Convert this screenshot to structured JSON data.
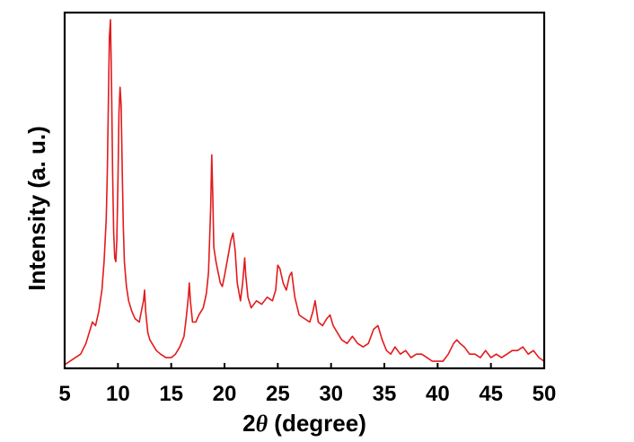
{
  "chart_data": {
    "type": "line",
    "title": "",
    "xlabel_prefix": "2",
    "xlabel_symbol": "θ",
    "xlabel_suffix": " (degree)",
    "ylabel": "Intensity (a. u.)",
    "xlim": [
      5,
      50
    ],
    "ylim": [
      0,
      1.0
    ],
    "x_ticks": [
      5,
      10,
      15,
      20,
      25,
      30,
      35,
      40,
      45,
      50
    ],
    "y_ticks_labeled": false,
    "grid": false,
    "line_color": "#e31a1c",
    "series": [
      {
        "x": [
          5.0,
          5.5,
          6.0,
          6.5,
          7.0,
          7.3,
          7.6,
          7.9,
          8.2,
          8.5,
          8.7,
          8.9,
          9.0,
          9.1,
          9.2,
          9.3,
          9.4,
          9.5,
          9.6,
          9.7,
          9.8,
          9.9,
          10.0,
          10.1,
          10.2,
          10.3,
          10.4,
          10.5,
          10.6,
          10.8,
          11.0,
          11.3,
          11.6,
          12.0,
          12.2,
          12.4,
          12.5,
          12.6,
          12.8,
          13.0,
          13.2,
          13.6,
          14.0,
          14.5,
          15.0,
          15.4,
          15.8,
          16.2,
          16.4,
          16.6,
          16.7,
          16.8,
          17.0,
          17.3,
          17.6,
          18.0,
          18.3,
          18.5,
          18.6,
          18.7,
          18.8,
          18.9,
          19.0,
          19.2,
          19.4,
          19.6,
          19.8,
          20.0,
          20.3,
          20.6,
          20.8,
          21.0,
          21.2,
          21.5,
          21.7,
          21.9,
          22.0,
          22.2,
          22.5,
          23.0,
          23.5,
          24.0,
          24.5,
          24.8,
          25.0,
          25.2,
          25.5,
          25.8,
          26.1,
          26.3,
          26.6,
          27.0,
          27.5,
          28.0,
          28.3,
          28.5,
          28.8,
          29.2,
          29.6,
          29.9,
          30.2,
          30.6,
          31.0,
          31.5,
          32.0,
          32.5,
          33.0,
          33.5,
          34.0,
          34.4,
          34.8,
          35.2,
          35.6,
          36.0,
          36.5,
          37.0,
          37.5,
          38.0,
          38.5,
          39.0,
          39.5,
          40.0,
          40.5,
          41.0,
          41.5,
          41.8,
          42.1,
          42.5,
          43.0,
          43.5,
          44.0,
          44.5,
          45.0,
          45.5,
          46.0,
          46.5,
          47.0,
          47.5,
          48.0,
          48.5,
          49.0,
          49.5,
          50.0
        ],
        "y": [
          0.01,
          0.02,
          0.03,
          0.04,
          0.07,
          0.1,
          0.13,
          0.12,
          0.16,
          0.22,
          0.3,
          0.42,
          0.55,
          0.75,
          0.93,
          0.98,
          0.8,
          0.55,
          0.38,
          0.31,
          0.3,
          0.36,
          0.52,
          0.72,
          0.79,
          0.74,
          0.56,
          0.4,
          0.3,
          0.23,
          0.19,
          0.16,
          0.14,
          0.13,
          0.16,
          0.19,
          0.22,
          0.16,
          0.1,
          0.08,
          0.07,
          0.05,
          0.04,
          0.03,
          0.03,
          0.04,
          0.06,
          0.09,
          0.14,
          0.2,
          0.24,
          0.19,
          0.13,
          0.13,
          0.15,
          0.17,
          0.21,
          0.27,
          0.36,
          0.45,
          0.6,
          0.49,
          0.34,
          0.3,
          0.27,
          0.24,
          0.23,
          0.26,
          0.31,
          0.36,
          0.38,
          0.33,
          0.24,
          0.19,
          0.24,
          0.31,
          0.26,
          0.2,
          0.17,
          0.19,
          0.18,
          0.2,
          0.19,
          0.22,
          0.29,
          0.28,
          0.24,
          0.22,
          0.26,
          0.27,
          0.2,
          0.15,
          0.14,
          0.13,
          0.16,
          0.19,
          0.13,
          0.12,
          0.14,
          0.15,
          0.12,
          0.1,
          0.08,
          0.07,
          0.09,
          0.07,
          0.06,
          0.07,
          0.11,
          0.12,
          0.08,
          0.05,
          0.04,
          0.06,
          0.04,
          0.05,
          0.03,
          0.04,
          0.04,
          0.03,
          0.02,
          0.02,
          0.02,
          0.04,
          0.07,
          0.08,
          0.07,
          0.06,
          0.04,
          0.04,
          0.03,
          0.05,
          0.03,
          0.04,
          0.03,
          0.04,
          0.05,
          0.05,
          0.06,
          0.04,
          0.05,
          0.03,
          0.02
        ]
      }
    ]
  }
}
